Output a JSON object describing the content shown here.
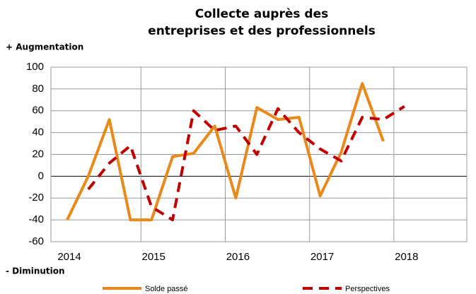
{
  "chart_data": {
    "type": "line",
    "title": [
      "Collecte auprès des",
      "entreprises et des professionnels"
    ],
    "y_label_top": "+ Augmentation",
    "y_label_bottom": "- Diminution",
    "categories": [
      "2014",
      null,
      null,
      null,
      "2015",
      null,
      null,
      null,
      "2016",
      null,
      null,
      null,
      "2017",
      null,
      null,
      null,
      "2018",
      null,
      null,
      null
    ],
    "series": [
      {
        "name": "Solde passé",
        "color": "#e8891a",
        "dashed": false,
        "values": [
          -40,
          0,
          52,
          -40,
          -40,
          18,
          21,
          46,
          -20,
          63,
          52,
          54,
          -18,
          22,
          85,
          32,
          null,
          null,
          null,
          null
        ]
      },
      {
        "name": "Perspectives",
        "color": "#c00000",
        "dashed": true,
        "values": [
          null,
          -12,
          12,
          28,
          -28,
          -40,
          60,
          42,
          46,
          20,
          62,
          40,
          25,
          14,
          54,
          52,
          64,
          null,
          null,
          null
        ]
      }
    ],
    "ylim": [
      -60,
      100
    ],
    "yticks": [
      -60,
      -40,
      -20,
      0,
      20,
      40,
      60,
      80,
      100
    ],
    "grid": true
  }
}
